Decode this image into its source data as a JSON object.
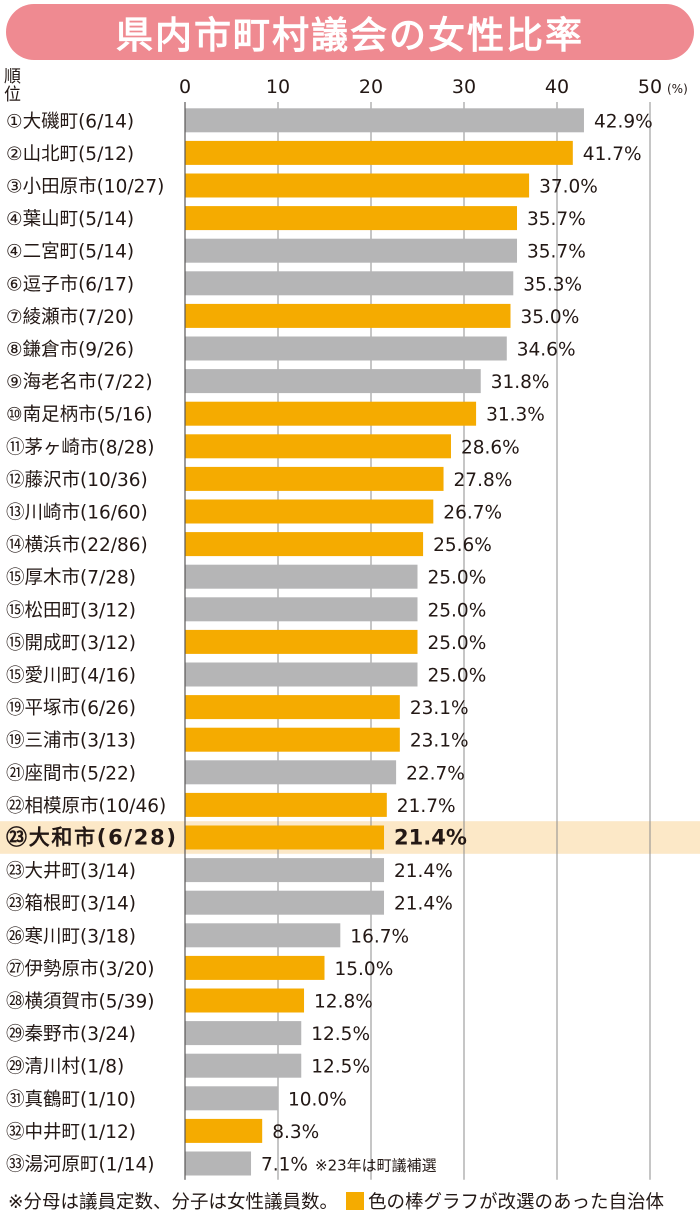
{
  "title": "県内市町村議会の女性比率",
  "rank_header": [
    "順",
    "位"
  ],
  "unit": "(%)",
  "note": "※23年は町議補選",
  "footer": {
    "left": "※分母は議員定数、分子は女性議員数。",
    "right": "色の棒グラフが改選のあった自治体"
  },
  "colors": {
    "reelected": "#f5ab00",
    "other": "#b5b5b6",
    "highlight_row": "#fce8c7",
    "title_bg": "#ef8a91"
  },
  "chart_data": {
    "type": "bar",
    "orientation": "horizontal",
    "xlim": [
      0,
      50
    ],
    "xticks": [
      0,
      10,
      20,
      30,
      40,
      50
    ],
    "highlight_index": 22,
    "rows": [
      {
        "label": "①大磯町(6/14)",
        "value": 42.9,
        "text": "42.9%",
        "reelected": false
      },
      {
        "label": "②山北町(5/12)",
        "value": 41.7,
        "text": "41.7%",
        "reelected": true
      },
      {
        "label": "③小田原市(10/27)",
        "value": 37.0,
        "text": "37.0%",
        "reelected": true
      },
      {
        "label": "④葉山町(5/14)",
        "value": 35.7,
        "text": "35.7%",
        "reelected": true
      },
      {
        "label": "④二宮町(5/14)",
        "value": 35.7,
        "text": "35.7%",
        "reelected": false
      },
      {
        "label": "⑥逗子市(6/17)",
        "value": 35.3,
        "text": "35.3%",
        "reelected": false
      },
      {
        "label": "⑦綾瀬市(7/20)",
        "value": 35.0,
        "text": "35.0%",
        "reelected": true
      },
      {
        "label": "⑧鎌倉市(9/26)",
        "value": 34.6,
        "text": "34.6%",
        "reelected": false
      },
      {
        "label": "⑨海老名市(7/22)",
        "value": 31.8,
        "text": "31.8%",
        "reelected": false
      },
      {
        "label": "⑩南足柄市(5/16)",
        "value": 31.3,
        "text": "31.3%",
        "reelected": true
      },
      {
        "label": "⑪茅ヶ崎市(8/28)",
        "value": 28.6,
        "text": "28.6%",
        "reelected": true
      },
      {
        "label": "⑫藤沢市(10/36)",
        "value": 27.8,
        "text": "27.8%",
        "reelected": true
      },
      {
        "label": "⑬川崎市(16/60)",
        "value": 26.7,
        "text": "26.7%",
        "reelected": true
      },
      {
        "label": "⑭横浜市(22/86)",
        "value": 25.6,
        "text": "25.6%",
        "reelected": true
      },
      {
        "label": "⑮厚木市(7/28)",
        "value": 25.0,
        "text": "25.0%",
        "reelected": false
      },
      {
        "label": "⑮松田町(3/12)",
        "value": 25.0,
        "text": "25.0%",
        "reelected": false
      },
      {
        "label": "⑮開成町(3/12)",
        "value": 25.0,
        "text": "25.0%",
        "reelected": true
      },
      {
        "label": "⑮愛川町(4/16)",
        "value": 25.0,
        "text": "25.0%",
        "reelected": false
      },
      {
        "label": "⑲平塚市(6/26)",
        "value": 23.1,
        "text": "23.1%",
        "reelected": true
      },
      {
        "label": "⑲三浦市(3/13)",
        "value": 23.1,
        "text": "23.1%",
        "reelected": true
      },
      {
        "label": "㉑座間市(5/22)",
        "value": 22.7,
        "text": "22.7%",
        "reelected": false
      },
      {
        "label": "㉒相模原市(10/46)",
        "value": 21.7,
        "text": "21.7%",
        "reelected": true
      },
      {
        "label": "㉓大和市(6/28)",
        "value": 21.4,
        "text": "21.4%",
        "reelected": true
      },
      {
        "label": "㉓大井町(3/14)",
        "value": 21.4,
        "text": "21.4%",
        "reelected": false
      },
      {
        "label": "㉓箱根町(3/14)",
        "value": 21.4,
        "text": "21.4%",
        "reelected": false
      },
      {
        "label": "㉖寒川町(3/18)",
        "value": 16.7,
        "text": "16.7%",
        "reelected": false
      },
      {
        "label": "㉗伊勢原市(3/20)",
        "value": 15.0,
        "text": "15.0%",
        "reelected": true
      },
      {
        "label": "㉘横須賀市(5/39)",
        "value": 12.8,
        "text": "12.8%",
        "reelected": true
      },
      {
        "label": "㉙秦野市(3/24)",
        "value": 12.5,
        "text": "12.5%",
        "reelected": false
      },
      {
        "label": "㉙清川村(1/8)",
        "value": 12.5,
        "text": "12.5%",
        "reelected": false
      },
      {
        "label": "㉛真鶴町(1/10)",
        "value": 10.0,
        "text": "10.0%",
        "reelected": false
      },
      {
        "label": "㉜中井町(1/12)",
        "value": 8.3,
        "text": "8.3%",
        "reelected": true
      },
      {
        "label": "㉝湯河原町(1/14)",
        "value": 7.1,
        "text": "7.1%",
        "reelected": false
      }
    ]
  }
}
